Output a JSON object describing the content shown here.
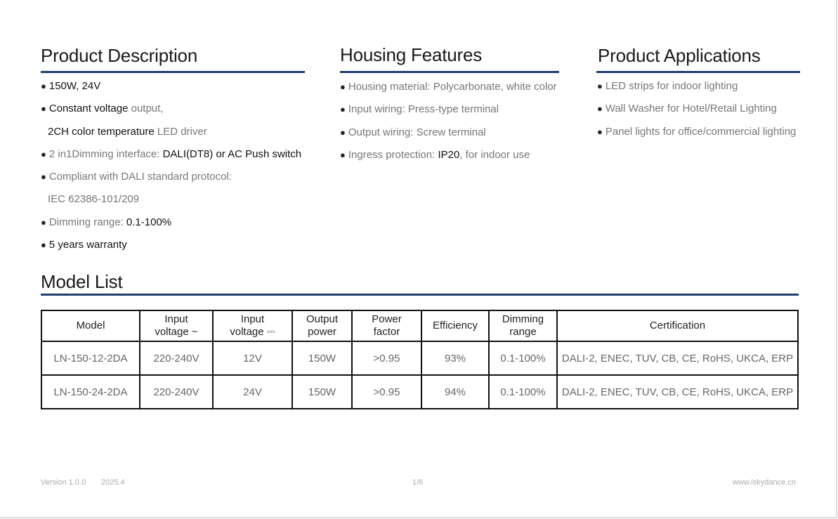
{
  "description": {
    "title": "Product Description",
    "items": [
      {
        "bullet": true,
        "segments": [
          {
            "text": "150W, 24V",
            "bold": true
          }
        ]
      },
      {
        "bullet": true,
        "segments": [
          {
            "text": "Constant voltage",
            "bold": true
          },
          {
            "text": " output,",
            "bold": false
          }
        ]
      },
      {
        "bullet": false,
        "segments": [
          {
            "text": "2CH color temperature",
            "bold": true
          },
          {
            "text": " LED driver",
            "bold": false
          }
        ]
      },
      {
        "bullet": true,
        "segments": [
          {
            "text": "2 in1Dimming interface: ",
            "bold": false
          },
          {
            "text": "DALI(DT8) or AC Push switch",
            "bold": true
          }
        ]
      },
      {
        "bullet": true,
        "segments": [
          {
            "text": "Compliant with DALI standard protocol:",
            "bold": false
          }
        ]
      },
      {
        "bullet": false,
        "segments": [
          {
            "text": "IEC 62386-101/209",
            "bold": false
          }
        ]
      },
      {
        "bullet": true,
        "segments": [
          {
            "text": "Dimming range: ",
            "bold": false
          },
          {
            "text": "0.1-100%",
            "bold": true
          }
        ]
      },
      {
        "bullet": true,
        "segments": [
          {
            "text": "5 years warranty",
            "bold": true
          }
        ]
      }
    ]
  },
  "housing": {
    "title": "Housing Features",
    "items": [
      {
        "bullet": true,
        "segments": [
          {
            "text": "Housing material: Polycarbonate, white color",
            "bold": false
          }
        ]
      },
      {
        "bullet": true,
        "segments": [
          {
            "text": "Input wiring: Press-type terminal",
            "bold": false
          }
        ]
      },
      {
        "bullet": true,
        "segments": [
          {
            "text": "Output wiring: Screw terminal",
            "bold": false
          }
        ]
      },
      {
        "bullet": true,
        "segments": [
          {
            "text": "Ingress protection: ",
            "bold": false
          },
          {
            "text": "IP20",
            "bold": true
          },
          {
            "text": ", for indoor use",
            "bold": false
          }
        ]
      }
    ]
  },
  "applications": {
    "title": "Product Applications",
    "items": [
      {
        "bullet": true,
        "segments": [
          {
            "text": "LED strips for indoor lighting",
            "bold": false
          }
        ]
      },
      {
        "bullet": true,
        "segments": [
          {
            "text": "Wall Washer for Hotel/Retail Lighting",
            "bold": false
          }
        ]
      },
      {
        "bullet": true,
        "segments": [
          {
            "text": "Panel lights for office/commercial lighting",
            "bold": false
          }
        ]
      }
    ]
  },
  "model_list": {
    "title": "Model List",
    "headers": [
      [
        "Model"
      ],
      [
        "Input",
        "voltage ~"
      ],
      [
        "Input",
        "voltage ⎓"
      ],
      [
        "Output",
        "power"
      ],
      [
        "Power",
        "factor"
      ],
      [
        "Efficiency"
      ],
      [
        "Dimming",
        "range"
      ],
      [
        "Certification"
      ]
    ],
    "rows": [
      [
        "LN-150-12-2DA",
        "220-240V",
        "12V",
        "150W",
        ">0.95",
        "93%",
        "0.1-100%",
        "DALI-2, ENEC, TUV, CB, CE, RoHS, UKCA, ERP"
      ],
      [
        "LN-150-24-2DA",
        "220-240V",
        "24V",
        "150W",
        ">0.95",
        "94%",
        "0.1-100%",
        "DALI-2, ENEC, TUV, CB, CE, RoHS, UKCA, ERP"
      ]
    ]
  },
  "footer": {
    "version": "Version 1.0.0",
    "date": "2025.4",
    "page": "1/6",
    "website": "www.iskydance.cn"
  },
  "colors": {
    "rule": "#1f3f6e"
  },
  "bullet_glyph": "●"
}
